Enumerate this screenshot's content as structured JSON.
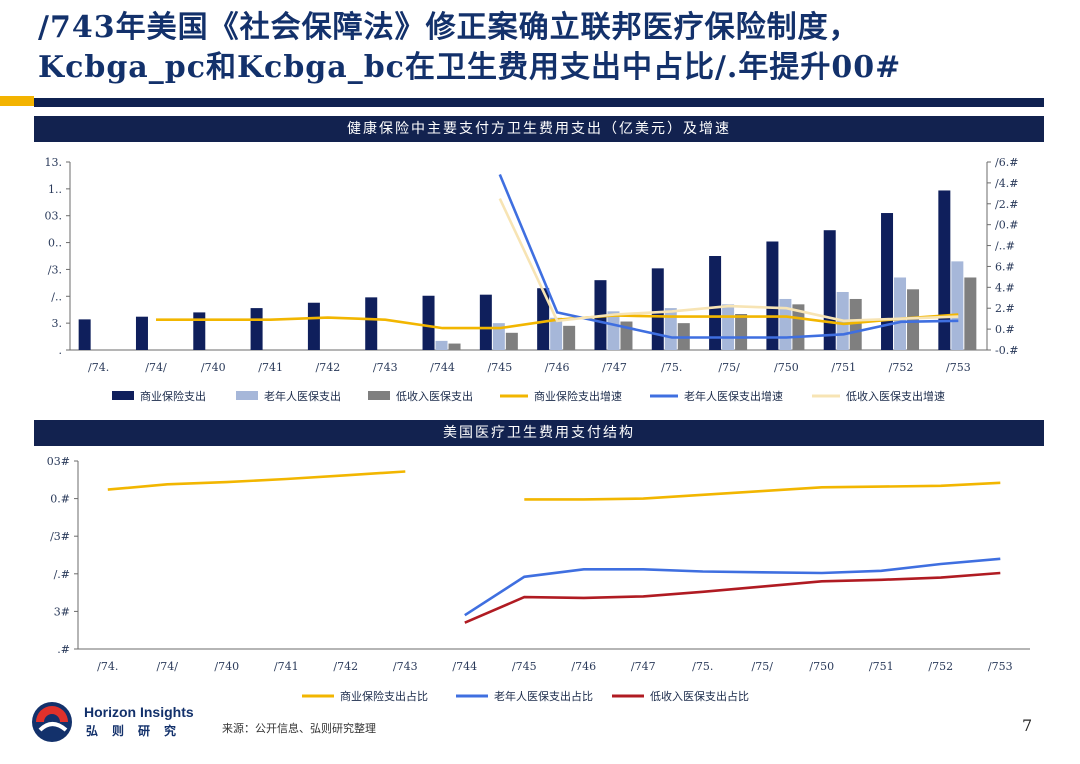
{
  "title": {
    "line1": "/743年美国《社会保障法》修正案确立联邦医疗保险制度，",
    "line2": "Kcbga_pc和Kcbga_bc在卫生费用支出中占比/.年提升00#"
  },
  "colors": {
    "navy": "#0f1f5c",
    "light_blue": "#a6b7d9",
    "gray": "#7f7f7f",
    "gold": "#f2b600",
    "blue": "#3f6fe0",
    "cream": "#f7e4b4",
    "red": "#b01b22",
    "header_bg": "#12224f"
  },
  "chart_data": [
    {
      "type": "bar",
      "title": "健康保险中主要支付方卫生费用支出（亿美元）及增速",
      "categories": [
        "/74.",
        "/74/",
        "/740",
        "/741",
        "/742",
        "/743",
        "/744",
        "/745",
        "/746",
        "/747",
        "/75.",
        "/75/",
        "/750",
        "/751",
        "/752",
        "/753"
      ],
      "left_ticks": [
        ".",
        "3.",
        "/..",
        "/3.",
        "0..",
        "03.",
        "1..",
        "13."
      ],
      "right_ticks": [
        "-0.#",
        "0.#",
        "2.#",
        "4.#",
        "6.#",
        "/..#",
        "/0.#",
        "/2.#",
        "/4.#",
        "/6.#"
      ],
      "left_ylim": [
        0,
        350
      ],
      "right_ylim": [
        -20,
        160
      ],
      "series": [
        {
          "name": "商业保险支出",
          "kind": "bar",
          "values": [
            57,
            62,
            70,
            78,
            88,
            98,
            101,
            103,
            115,
            130,
            152,
            175,
            202,
            223,
            255,
            297
          ]
        },
        {
          "name": "老年人医保支出",
          "kind": "bar",
          "values": [
            0,
            0,
            0,
            0,
            0,
            0,
            17,
            50,
            60,
            72,
            78,
            85,
            95,
            108,
            135,
            165
          ]
        },
        {
          "name": "低收入医保支出",
          "kind": "bar",
          "values": [
            0,
            0,
            0,
            0,
            0,
            0,
            12,
            32,
            45,
            53,
            50,
            67,
            85,
            95,
            113,
            135
          ]
        },
        {
          "name": "商业保险支出增速",
          "kind": "line",
          "values": [
            null,
            9,
            9,
            9,
            11,
            9,
            1,
            1,
            9,
            13,
            12,
            12,
            12,
            5,
            10,
            14
          ]
        },
        {
          "name": "老年人医保支出增速",
          "kind": "line",
          "values": [
            null,
            null,
            null,
            null,
            null,
            null,
            null,
            148,
            16,
            4,
            -8,
            -8,
            -8,
            -5,
            7,
            8
          ]
        },
        {
          "name": "低收入医保支出增速",
          "kind": "line",
          "values": [
            null,
            null,
            null,
            null,
            null,
            null,
            null,
            125,
            8,
            14,
            17,
            22,
            20,
            8,
            10,
            12
          ]
        }
      ],
      "legend_position": "bottom"
    },
    {
      "type": "line",
      "title": "美国医疗卫生费用支付结构",
      "categories": [
        "/74.",
        "/74/",
        "/740",
        "/741",
        "/742",
        "/743",
        "/744",
        "/745",
        "/746",
        "/747",
        "/75.",
        "/75/",
        "/750",
        "/751",
        "/752",
        "/753"
      ],
      "y_ticks": [
        ".#",
        "3#",
        "/.#",
        "/3#",
        "0.#",
        "03#"
      ],
      "ylim": [
        0,
        25
      ],
      "series": [
        {
          "name": "商业保险支出占比",
          "values": [
            21.2,
            21.9,
            22.2,
            22.6,
            23.1,
            23.6,
            null,
            19.9,
            19.9,
            20.0,
            20.5,
            21.0,
            21.5,
            21.6,
            21.7,
            22.1
          ]
        },
        {
          "name": "老年人医保支出占比",
          "values": [
            null,
            null,
            null,
            null,
            null,
            null,
            4.5,
            9.6,
            10.6,
            10.6,
            10.3,
            10.2,
            10.1,
            10.4,
            11.3,
            12.0
          ]
        },
        {
          "name": "低收入医保支出占比",
          "values": [
            null,
            null,
            null,
            null,
            null,
            null,
            3.5,
            6.9,
            6.8,
            7.0,
            7.6,
            8.3,
            9.0,
            9.2,
            9.5,
            10.1
          ]
        }
      ],
      "legend_position": "bottom"
    }
  ],
  "footer": {
    "source": "来源：公开信息、弘则研究整理",
    "page": "7",
    "logo_name": "Horizon Insights",
    "logo_cn": "弘则研究"
  }
}
